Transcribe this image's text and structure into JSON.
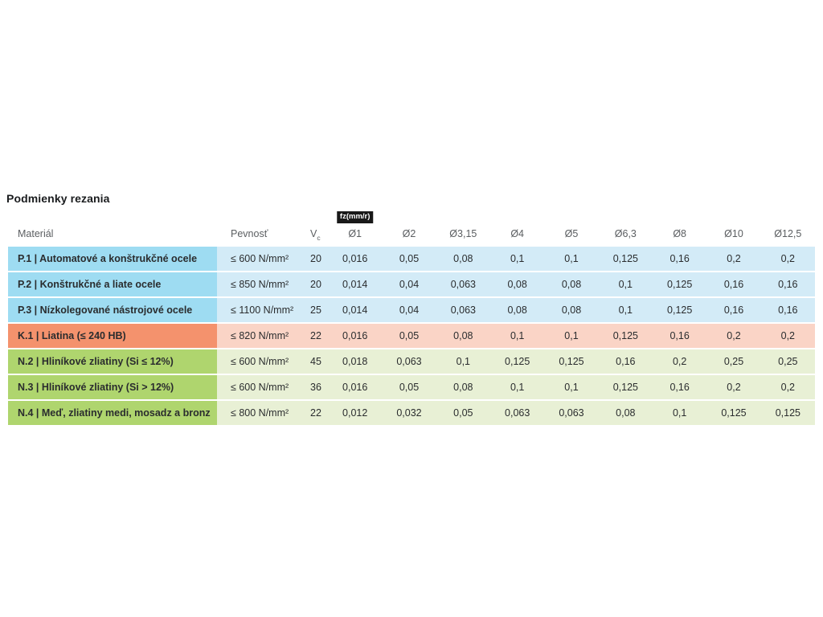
{
  "title": "Podmienky rezania",
  "table": {
    "badge_label": "fz(mm/r)",
    "headers": {
      "material": "Materiál",
      "strength": "Pevnosť",
      "vc_main": "V",
      "vc_sub": "c",
      "diameters": [
        "Ø1",
        "Ø2",
        "Ø3,15",
        "Ø4",
        "Ø5",
        "Ø6,3",
        "Ø8",
        "Ø10",
        "Ø12,5"
      ]
    },
    "colors": {
      "P": {
        "dark": "#9EDCF2",
        "light": "#D3EBF7"
      },
      "K": {
        "dark": "#F4926D",
        "light": "#FAD4C6"
      },
      "N": {
        "dark": "#AFD56E",
        "light": "#E8F0D5"
      }
    },
    "rows": [
      {
        "id": "p1",
        "group": "P",
        "group_start": false,
        "material": "P.1 | Automatové a konštrukčné ocele",
        "strength": "≤ 600 N/mm²",
        "vc": "20",
        "values": [
          "0,016",
          "0,05",
          "0,08",
          "0,1",
          "0,1",
          "0,125",
          "0,16",
          "0,2",
          "0,2"
        ]
      },
      {
        "id": "p2",
        "group": "P",
        "group_start": false,
        "material": "P.2 | Konštrukčné a liate ocele",
        "strength": "≤ 850 N/mm²",
        "vc": "20",
        "values": [
          "0,014",
          "0,04",
          "0,063",
          "0,08",
          "0,08",
          "0,1",
          "0,125",
          "0,16",
          "0,16"
        ]
      },
      {
        "id": "p3",
        "group": "P",
        "group_start": false,
        "material": "P.3 | Nízkolegované nástrojové ocele",
        "strength": "≤ 1100 N/mm²",
        "vc": "25",
        "values": [
          "0,014",
          "0,04",
          "0,063",
          "0,08",
          "0,08",
          "0,1",
          "0,125",
          "0,16",
          "0,16"
        ]
      },
      {
        "id": "k1",
        "group": "K",
        "group_start": true,
        "material": "K.1 | Liatina (≤ 240 HB)",
        "strength": "≤ 820 N/mm²",
        "vc": "22",
        "values": [
          "0,016",
          "0,05",
          "0,08",
          "0,1",
          "0,1",
          "0,125",
          "0,16",
          "0,2",
          "0,2"
        ]
      },
      {
        "id": "n2",
        "group": "N",
        "group_start": true,
        "material": "N.2 | Hliníkové zliatiny (Si ≤ 12%)",
        "strength": "≤ 600 N/mm²",
        "vc": "45",
        "values": [
          "0,018",
          "0,063",
          "0,1",
          "0,125",
          "0,125",
          "0,16",
          "0,2",
          "0,25",
          "0,25"
        ]
      },
      {
        "id": "n3",
        "group": "N",
        "group_start": false,
        "material": "N.3 | Hliníkové zliatiny (Si > 12%)",
        "strength": "≤ 600 N/mm²",
        "vc": "36",
        "values": [
          "0,016",
          "0,05",
          "0,08",
          "0,1",
          "0,1",
          "0,125",
          "0,16",
          "0,2",
          "0,2"
        ]
      },
      {
        "id": "n4",
        "group": "N",
        "group_start": false,
        "material": "N.4 | Meď, zliatiny medi, mosadz a bronz",
        "strength": "≤ 800 N/mm²",
        "vc": "22",
        "values": [
          "0,012",
          "0,032",
          "0,05",
          "0,063",
          "0,063",
          "0,08",
          "0,1",
          "0,125",
          "0,125"
        ]
      }
    ]
  }
}
